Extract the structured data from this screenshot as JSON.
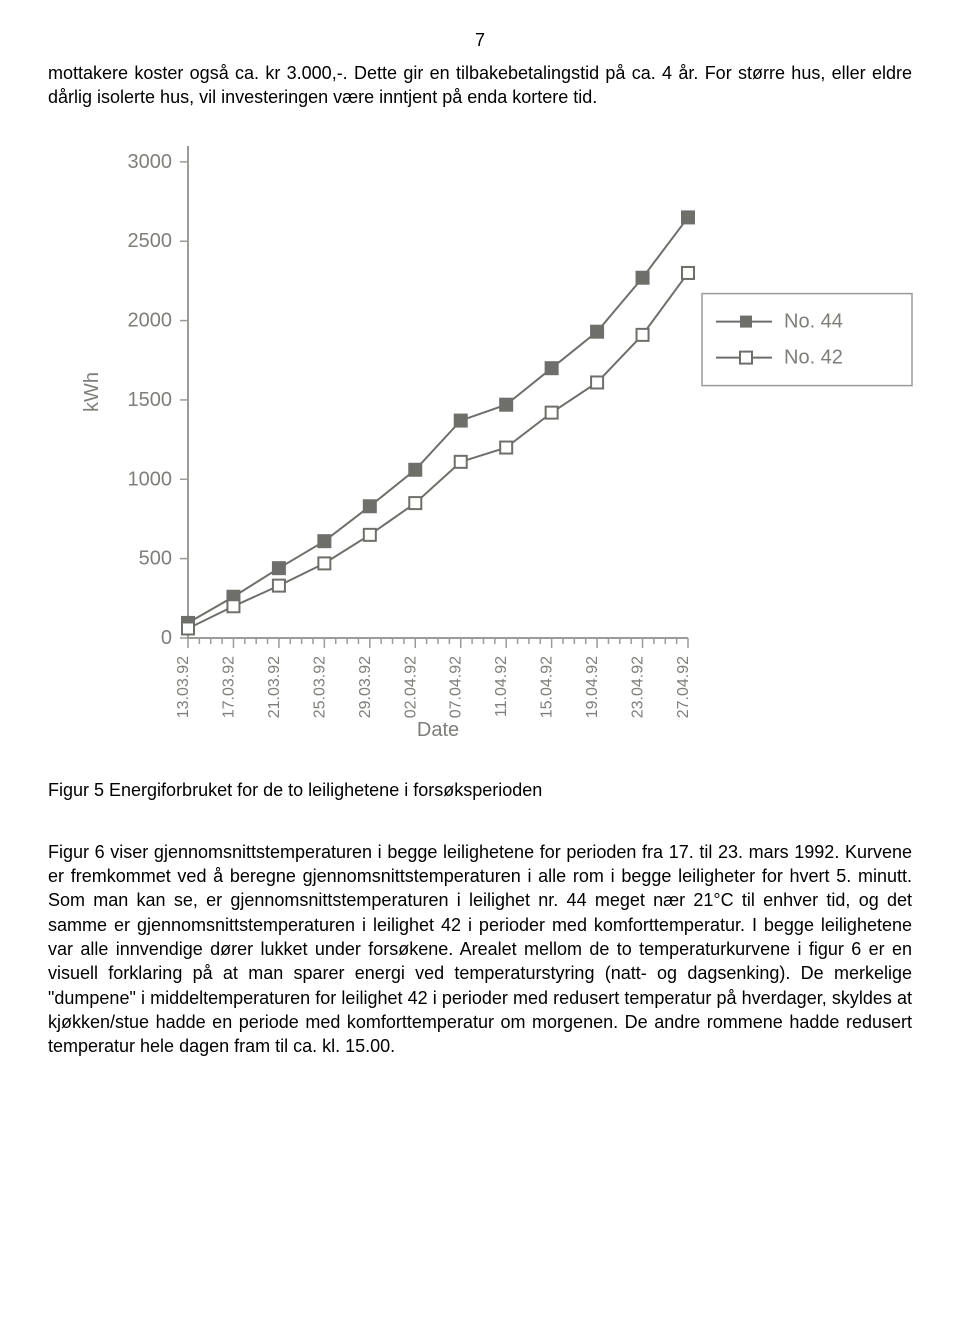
{
  "page_number": "7",
  "para1": "mottakere koster også ca. kr 3.000,-. Dette gir en tilbakebetalingstid på ca. 4 år. For større hus, eller eldre dårlig isolerte hus, vil investeringen være inntjent på enda kortere tid.",
  "caption5": "Figur 5 Energiforbruket for de to leilighetene i forsøksperioden",
  "para2": "Figur 6 viser gjennomsnittstemperaturen i begge leilighetene for perioden fra 17. til 23. mars 1992. Kurvene er fremkommet ved å beregne gjennomsnittstemperaturen i alle rom i begge leiligheter for hvert 5. minutt. Som man kan se, er gjennomsnittstemperaturen i leilighet nr. 44 meget nær 21°C til enhver tid, og det samme er gjennomsnittstemperaturen i leilighet 42 i perioder med komforttemperatur. I begge leilighetene var alle innvendige dører lukket under forsøkene. Arealet mellom de to temperaturkurvene i figur 6 er en visuell forklaring på at man sparer energi ved temperaturstyring (natt- og dagsenking). De merkelige \"dumpene\" i middeltemperaturen for leilighet 42 i perioder med redusert temperatur på hverdager, skyldes at kjøkken/stue hadde en periode med komforttemperatur om morgenen. De andre rommene hadde redusert temperatur hele dagen fram til ca. kl. 15.00.",
  "chart": {
    "type": "line",
    "y_label": "kWh",
    "x_label": "Date",
    "background_color": "#ffffff",
    "axis_color": "#9b9b98",
    "text_color": "#7e7e7a",
    "y_ticks": [
      0,
      500,
      1000,
      1500,
      2000,
      2500,
      3000
    ],
    "ylim": [
      0,
      3100
    ],
    "x_categories": [
      "13.03.92",
      "17.03.92",
      "21.03.92",
      "25.03.92",
      "29.03.92",
      "02.04.92",
      "07.04.92",
      "11.04.92",
      "15.04.92",
      "19.04.92",
      "23.04.92",
      "27.04.92"
    ],
    "minor_ticks_between": 3,
    "series": [
      {
        "name": "No. 44",
        "marker": "square-filled",
        "color": "#6e6e6a",
        "values": [
          95,
          260,
          440,
          610,
          830,
          1060,
          1370,
          1470,
          1700,
          1930,
          2270,
          2650
        ]
      },
      {
        "name": "No. 42",
        "marker": "square-open",
        "color": "#6e6e6a",
        "values": [
          60,
          200,
          330,
          470,
          650,
          850,
          1110,
          1200,
          1420,
          1610,
          1910,
          2300
        ]
      }
    ],
    "legend_labels": [
      "No. 44",
      "No. 42"
    ]
  }
}
